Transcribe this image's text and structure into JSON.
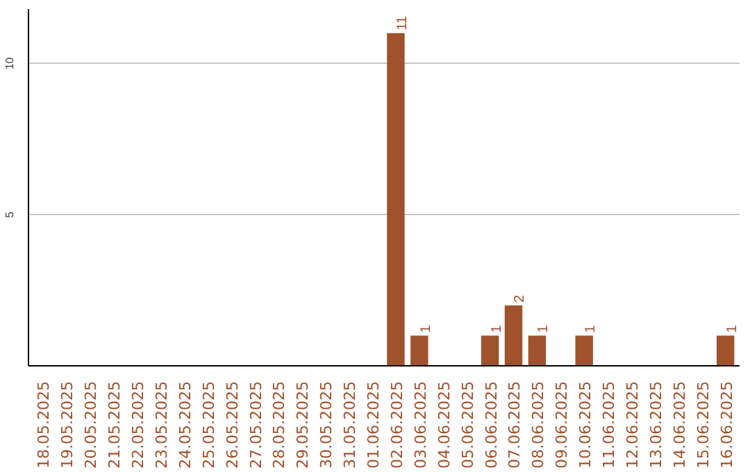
{
  "chart_data": {
    "type": "bar",
    "categories": [
      "18.05.2025",
      "19.05.2025",
      "20.05.2025",
      "21.05.2025",
      "22.05.2025",
      "23.05.2025",
      "24.05.2025",
      "25.05.2025",
      "26.05.2025",
      "27.05.2025",
      "28.05.2025",
      "29.05.2025",
      "30.05.2025",
      "31.05.2025",
      "01.06.2025",
      "02.06.2025",
      "03.06.2025",
      "04.06.2025",
      "05.06.2025",
      "06.06.2025",
      "07.06.2025",
      "08.06.2025",
      "09.06.2025",
      "10.06.2025",
      "11.06.2025",
      "12.06.2025",
      "13.06.2025",
      "14.06.2025",
      "15.06.2025",
      "16.06.2025"
    ],
    "values": [
      0,
      0,
      0,
      0,
      0,
      0,
      0,
      0,
      0,
      0,
      0,
      0,
      0,
      0,
      0,
      11,
      1,
      0,
      0,
      1,
      2,
      1,
      0,
      1,
      0,
      0,
      0,
      0,
      0,
      1
    ],
    "value_labels": [
      null,
      null,
      null,
      null,
      null,
      null,
      null,
      null,
      null,
      null,
      null,
      null,
      null,
      null,
      null,
      "11",
      "1",
      null,
      null,
      "1",
      "2",
      "1",
      null,
      "1",
      null,
      null,
      null,
      null,
      null,
      "1"
    ],
    "color": "#a0522d",
    "ylim": [
      0,
      11.8
    ],
    "yticks": [
      5,
      10
    ],
    "grid": "y"
  }
}
